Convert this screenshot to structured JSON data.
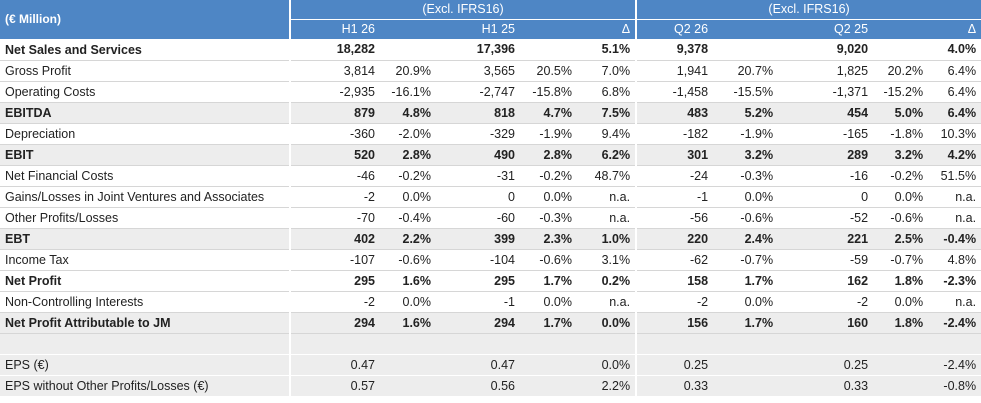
{
  "header": {
    "unit_label": "(€ Million)",
    "group1_title": "(Excl. IFRS16)",
    "group2_title": "(Excl. IFRS16)",
    "h1_26": "H1 26",
    "h1_25": "H1 25",
    "delta1": "Δ",
    "q2_26": "Q2 26",
    "q2_25": "Q2 25",
    "delta2": "Δ"
  },
  "rows": [
    {
      "label": "Net Sales and Services",
      "bold": true,
      "shade": false,
      "c": [
        "18,282",
        "",
        "17,396",
        "",
        "5.1%",
        "9,378",
        "",
        "9,020",
        "",
        "4.0%"
      ]
    },
    {
      "label": "Gross Profit",
      "bold": false,
      "shade": false,
      "c": [
        "3,814",
        "20.9%",
        "3,565",
        "20.5%",
        "7.0%",
        "1,941",
        "20.7%",
        "1,825",
        "20.2%",
        "6.4%"
      ]
    },
    {
      "label": "Operating Costs",
      "bold": false,
      "shade": false,
      "c": [
        "-2,935",
        "-16.1%",
        "-2,747",
        "-15.8%",
        "6.8%",
        "-1,458",
        "-15.5%",
        "-1,371",
        "-15.2%",
        "6.4%"
      ]
    },
    {
      "label": "EBITDA",
      "bold": true,
      "shade": true,
      "c": [
        "879",
        "4.8%",
        "818",
        "4.7%",
        "7.5%",
        "483",
        "5.2%",
        "454",
        "5.0%",
        "6.4%"
      ]
    },
    {
      "label": "Depreciation",
      "bold": false,
      "shade": false,
      "c": [
        "-360",
        "-2.0%",
        "-329",
        "-1.9%",
        "9.4%",
        "-182",
        "-1.9%",
        "-165",
        "-1.8%",
        "10.3%"
      ]
    },
    {
      "label": "EBIT",
      "bold": true,
      "shade": true,
      "c": [
        "520",
        "2.8%",
        "490",
        "2.8%",
        "6.2%",
        "301",
        "3.2%",
        "289",
        "3.2%",
        "4.2%"
      ]
    },
    {
      "label": "Net Financial Costs",
      "bold": false,
      "shade": false,
      "c": [
        "-46",
        "-0.2%",
        "-31",
        "-0.2%",
        "48.7%",
        "-24",
        "-0.3%",
        "-16",
        "-0.2%",
        "51.5%"
      ]
    },
    {
      "label": "Gains/Losses in Joint Ventures and Associates",
      "bold": false,
      "shade": false,
      "c": [
        "-2",
        "0.0%",
        "0",
        "0.0%",
        "n.a.",
        "-1",
        "0.0%",
        "0",
        "0.0%",
        "n.a."
      ]
    },
    {
      "label": "Other Profits/Losses",
      "bold": false,
      "shade": false,
      "c": [
        "-70",
        "-0.4%",
        "-60",
        "-0.3%",
        "n.a.",
        "-56",
        "-0.6%",
        "-52",
        "-0.6%",
        "n.a."
      ]
    },
    {
      "label": "EBT",
      "bold": true,
      "shade": true,
      "c": [
        "402",
        "2.2%",
        "399",
        "2.3%",
        "1.0%",
        "220",
        "2.4%",
        "221",
        "2.5%",
        "-0.4%"
      ]
    },
    {
      "label": "Income Tax",
      "bold": false,
      "shade": false,
      "c": [
        "-107",
        "-0.6%",
        "-104",
        "-0.6%",
        "3.1%",
        "-62",
        "-0.7%",
        "-59",
        "-0.7%",
        "4.8%"
      ]
    },
    {
      "label": "Net Profit",
      "bold": true,
      "shade": false,
      "c": [
        "295",
        "1.6%",
        "295",
        "1.7%",
        "0.2%",
        "158",
        "1.7%",
        "162",
        "1.8%",
        "-2.3%"
      ]
    },
    {
      "label": "Non-Controlling Interests",
      "bold": false,
      "shade": false,
      "c": [
        "-2",
        "0.0%",
        "-1",
        "0.0%",
        "n.a.",
        "-2",
        "0.0%",
        "-2",
        "0.0%",
        "n.a."
      ]
    },
    {
      "label": "Net Profit Attributable to JM",
      "bold": true,
      "shade": true,
      "c": [
        "294",
        "1.6%",
        "294",
        "1.7%",
        "0.0%",
        "156",
        "1.7%",
        "160",
        "1.8%",
        "-2.4%"
      ]
    }
  ],
  "eps_rows": [
    {
      "label": "EPS (€)",
      "c": [
        "0.47",
        "",
        "0.47",
        "",
        "0.0%",
        "0.25",
        "",
        "0.25",
        "",
        "-2.4%"
      ]
    },
    {
      "label": "EPS without Other Profits/Losses (€)",
      "c": [
        "0.57",
        "",
        "0.56",
        "",
        "2.2%",
        "0.33",
        "",
        "0.33",
        "",
        "-0.8%"
      ]
    }
  ]
}
